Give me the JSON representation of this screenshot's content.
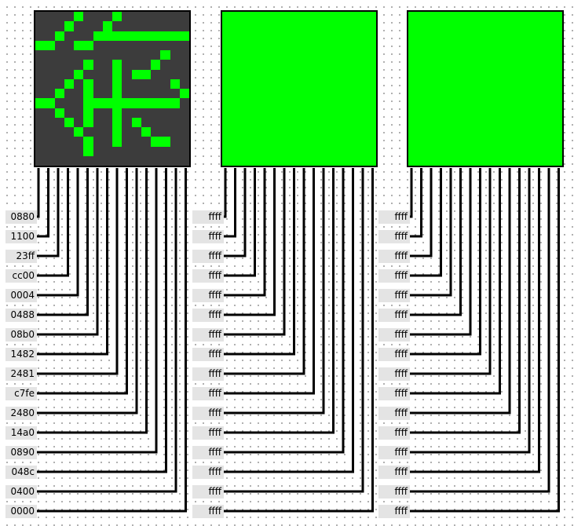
{
  "colors": {
    "lit": "#00ff00",
    "unlit": "#3c3c3c",
    "wire": "#000000",
    "label_bg": "#e4e4e4"
  },
  "matrices": [
    {
      "pins": [
        "0880",
        "1100",
        "23ff",
        "cc00",
        "0004",
        "0488",
        "08b0",
        "1482",
        "2481",
        "c7fe",
        "2480",
        "14a0",
        "0890",
        "048c",
        "0400",
        "0000"
      ]
    },
    {
      "pins": [
        "ffff",
        "ffff",
        "ffff",
        "ffff",
        "ffff",
        "ffff",
        "ffff",
        "ffff",
        "ffff",
        "ffff",
        "ffff",
        "ffff",
        "ffff",
        "ffff",
        "ffff",
        "ffff"
      ]
    },
    {
      "pins": [
        "ffff",
        "ffff",
        "ffff",
        "ffff",
        "ffff",
        "ffff",
        "ffff",
        "ffff",
        "ffff",
        "ffff",
        "ffff",
        "ffff",
        "ffff",
        "ffff",
        "ffff",
        "ffff"
      ]
    }
  ]
}
